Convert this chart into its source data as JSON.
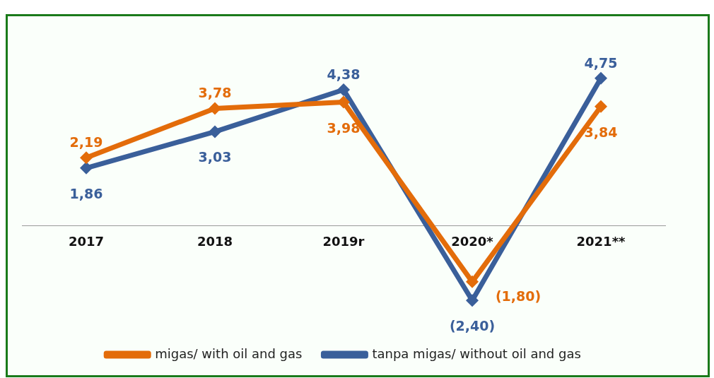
{
  "chart_data": {
    "type": "line",
    "categories": [
      "2017",
      "2018",
      "2019r",
      "2020*",
      "2021**"
    ],
    "series": [
      {
        "name": "migas/ with oil and gas",
        "color": "#e36c0a",
        "values": [
          2.19,
          3.78,
          3.98,
          -1.8,
          3.84
        ],
        "value_labels": [
          "2,19",
          "3,78",
          "3,98",
          "(1,80)",
          "3,84"
        ]
      },
      {
        "name": "tanpa migas/ without oil and gas",
        "color": "#3a5f9a",
        "values": [
          1.86,
          3.03,
          4.38,
          -2.4,
          4.75
        ],
        "value_labels": [
          "1,86",
          "3,03",
          "4,38",
          "(2,40)",
          "4,75"
        ]
      }
    ],
    "marker": "diamond",
    "legend": "bottom",
    "grid": false,
    "tick_labels": "x"
  }
}
